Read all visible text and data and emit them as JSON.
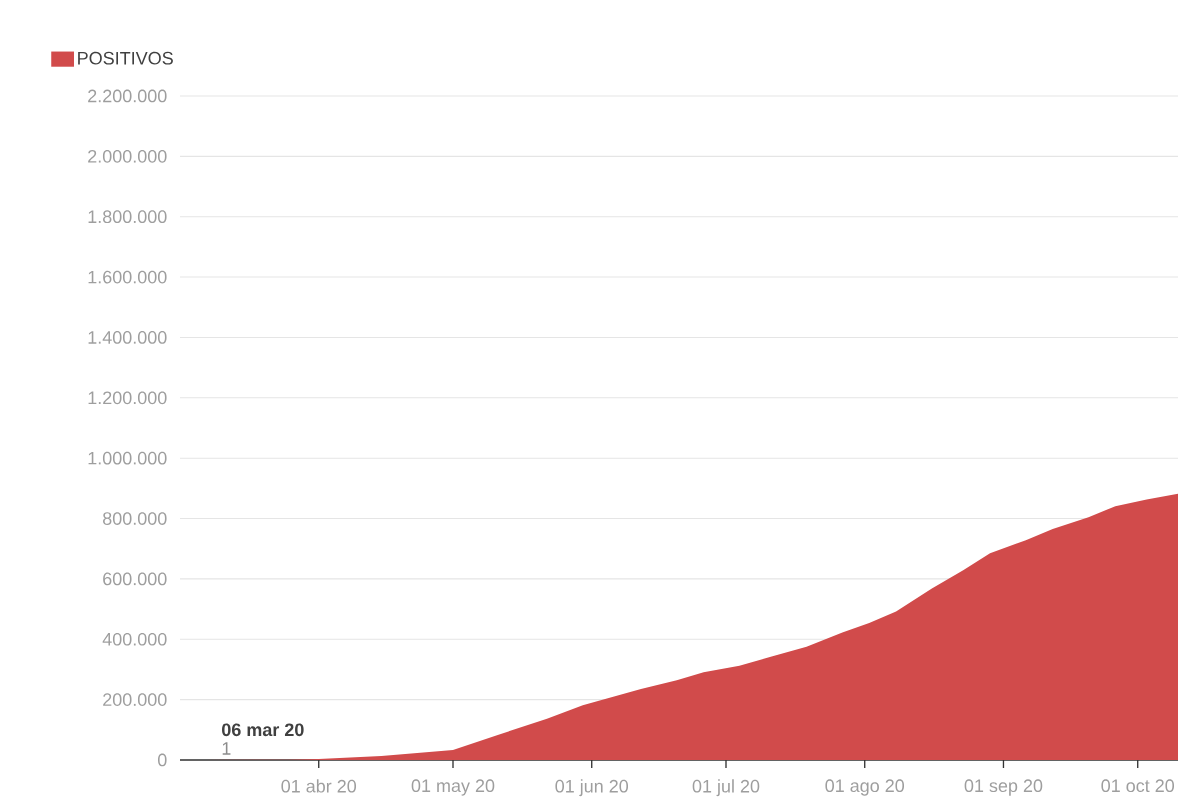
{
  "chart_data": {
    "type": "area",
    "x": [
      "2020-03-06",
      "2020-03-25",
      "2020-04-01",
      "2020-04-15",
      "2020-05-01",
      "2020-05-11",
      "2020-05-22",
      "2020-05-30",
      "2020-06-12",
      "2020-06-20",
      "2020-06-26",
      "2020-07-04",
      "2020-07-11",
      "2020-07-19",
      "2020-07-27",
      "2020-08-02",
      "2020-08-08",
      "2020-08-16",
      "2020-08-23",
      "2020-08-29",
      "2020-09-06",
      "2020-09-12",
      "2020-09-20",
      "2020-09-26",
      "2020-10-03",
      "2020-10-10"
    ],
    "series": [
      {
        "name": "POSITIVOS",
        "color": "#d14b4b",
        "values": [
          1,
          1000,
          3000,
          13000,
          33000,
          83000,
          137000,
          181000,
          235000,
          264000,
          291000,
          312000,
          342000,
          375000,
          422000,
          454000,
          492000,
          568000,
          629000,
          685000,
          728000,
          765000,
          804000,
          841000,
          863000,
          882000
        ]
      }
    ],
    "xlim": [
      "2020-03-01",
      "2020-10-10"
    ],
    "xticks": [
      {
        "value": "2020-04-01",
        "label": "01 abr 20"
      },
      {
        "value": "2020-05-01",
        "label": "01 may 20"
      },
      {
        "value": "2020-06-01",
        "label": "01 jun 20"
      },
      {
        "value": "2020-07-01",
        "label": "01 jul 20"
      },
      {
        "value": "2020-08-01",
        "label": "01 ago 20"
      },
      {
        "value": "2020-09-01",
        "label": "01 sep 20"
      },
      {
        "value": "2020-10-01",
        "label": "01 oct 20"
      }
    ],
    "ylim": [
      0,
      2200000
    ],
    "yticks": [
      0,
      {
        "value": 200000,
        "label": "200.000"
      },
      {
        "value": 400000,
        "label": "400.000"
      },
      {
        "value": 600000,
        "label": "600.000"
      },
      {
        "value": 800000,
        "label": "800.000"
      },
      {
        "value": 1000000,
        "label": "1.000.000"
      },
      {
        "value": 1200000,
        "label": "1.200.000"
      },
      {
        "value": 1400000,
        "label": "1.400.000"
      },
      {
        "value": 1600000,
        "label": "1.600.000"
      },
      {
        "value": 1800000,
        "label": "1.800.000"
      },
      {
        "value": 2000000,
        "label": "2.000.000"
      },
      {
        "value": 2200000,
        "label": "2.200.000"
      }
    ],
    "grid": "y",
    "legend": "top left",
    "annotations": [
      {
        "text": "06 mar 20",
        "x": "2020-03-06",
        "y": 1
      },
      {
        "text": "1",
        "x": "2020-03-06",
        "y": 1
      }
    ]
  }
}
